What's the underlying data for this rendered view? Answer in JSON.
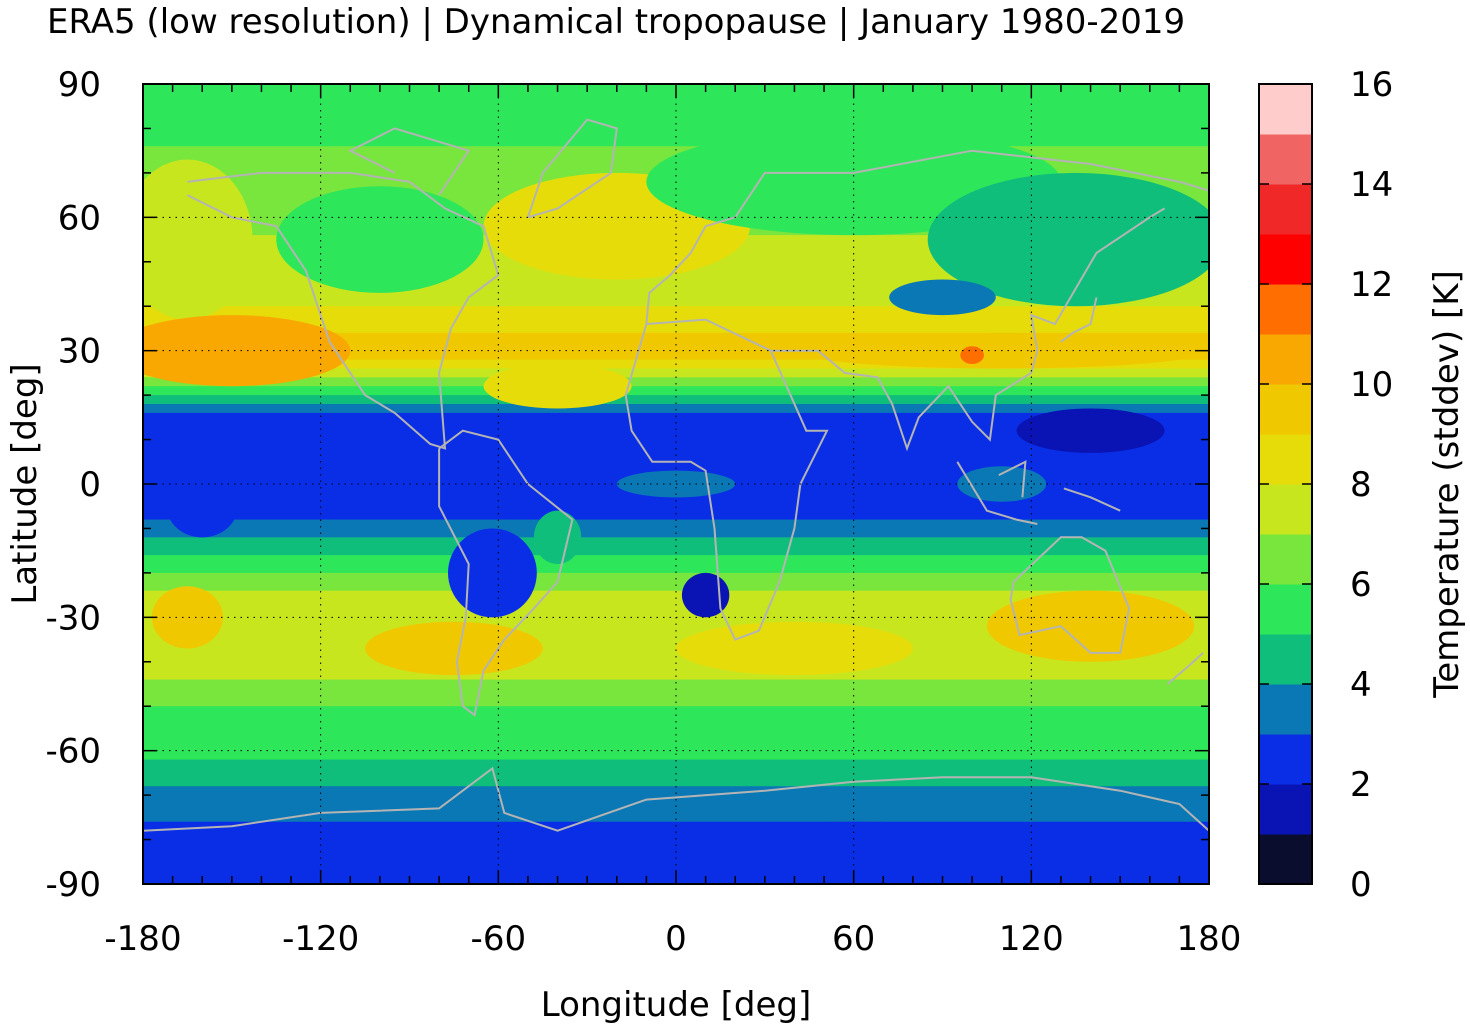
{
  "chart_data": {
    "type": "heatmap",
    "title": "ERA5 (low resolution) | Dynamical tropopause | January 1980-2019",
    "xlabel": "Longitude [deg]",
    "ylabel": "Latitude [deg]",
    "colorbar_label": "Temperature (stddev) [K]",
    "xlim": [
      -180,
      180
    ],
    "ylim": [
      -90,
      90
    ],
    "x_ticks": [
      -180,
      -120,
      -60,
      0,
      60,
      120,
      180
    ],
    "y_ticks": [
      90,
      60,
      30,
      0,
      -30,
      -60,
      -90
    ],
    "colorbar_range": [
      0,
      16
    ],
    "colorbar_ticks": [
      0,
      2,
      4,
      6,
      8,
      10,
      12,
      14,
      16
    ],
    "grid": true,
    "coastlines_color": "#b4b4b4",
    "color_levels": [
      {
        "min": 0,
        "max": 1,
        "color": "#0b0d2e"
      },
      {
        "min": 1,
        "max": 2,
        "color": "#0a14b4"
      },
      {
        "min": 2,
        "max": 3,
        "color": "#0a2ee6"
      },
      {
        "min": 3,
        "max": 4,
        "color": "#0a78b4"
      },
      {
        "min": 4,
        "max": 5,
        "color": "#10be7c"
      },
      {
        "min": 5,
        "max": 6,
        "color": "#2ee65a"
      },
      {
        "min": 6,
        "max": 7,
        "color": "#78e63c"
      },
      {
        "min": 7,
        "max": 8,
        "color": "#c8e61e"
      },
      {
        "min": 8,
        "max": 9,
        "color": "#e6dc0a"
      },
      {
        "min": 9,
        "max": 10,
        "color": "#f0c800"
      },
      {
        "min": 10,
        "max": 11,
        "color": "#f8a800"
      },
      {
        "min": 11,
        "max": 12,
        "color": "#ff6e00"
      },
      {
        "min": 12,
        "max": 13,
        "color": "#ff0000"
      },
      {
        "min": 13,
        "max": 14,
        "color": "#f02828"
      },
      {
        "min": 14,
        "max": 15,
        "color": "#f06464"
      },
      {
        "min": 15,
        "max": 16,
        "color": "#ffcccc"
      }
    ],
    "zonal_mean_profile": [
      {
        "lat": 90,
        "value": 5.5
      },
      {
        "lat": 75,
        "value": 6.0
      },
      {
        "lat": 60,
        "value": 6.5
      },
      {
        "lat": 50,
        "value": 7.5
      },
      {
        "lat": 40,
        "value": 8.0
      },
      {
        "lat": 30,
        "value": 9.5
      },
      {
        "lat": 22,
        "value": 6.0
      },
      {
        "lat": 15,
        "value": 2.5
      },
      {
        "lat": 5,
        "value": 2.2
      },
      {
        "lat": -5,
        "value": 2.5
      },
      {
        "lat": -15,
        "value": 4.5
      },
      {
        "lat": -22,
        "value": 6.5
      },
      {
        "lat": -30,
        "value": 8.0
      },
      {
        "lat": -40,
        "value": 7.5
      },
      {
        "lat": -50,
        "value": 6.0
      },
      {
        "lat": -60,
        "value": 5.5
      },
      {
        "lat": -70,
        "value": 3.5
      },
      {
        "lat": -80,
        "value": 2.5
      },
      {
        "lat": -90,
        "value": 2.5
      }
    ]
  }
}
